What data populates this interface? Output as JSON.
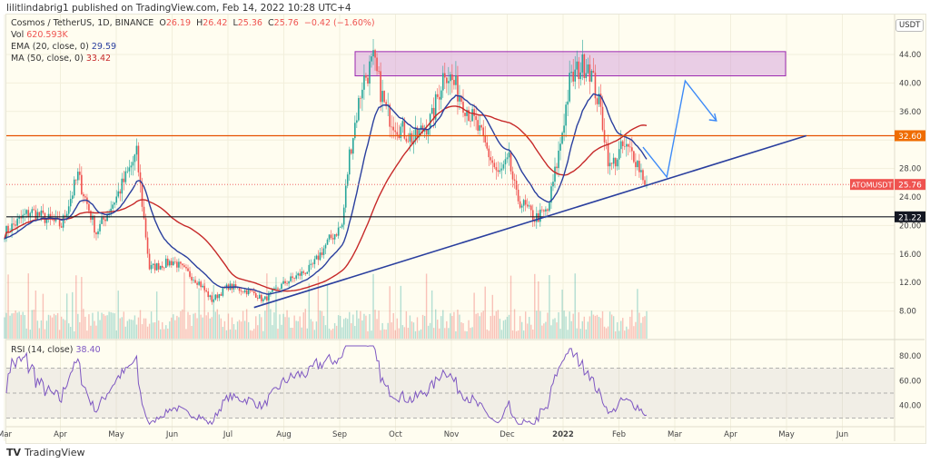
{
  "publisher_line": "lilitlindabrig1 published on TradingView.com, Feb 14, 2022 10:28 UTC+4",
  "legend": {
    "symbol": "Cosmos / TetherUS, 1D, BINANCE",
    "o_label": "O",
    "o": "26.19",
    "h_label": "H",
    "h": "26.42",
    "l_label": "L",
    "l": "25.36",
    "c_label": "C",
    "c": "25.76",
    "change": "−0.42 (−1.60%)",
    "vol_label": "Vol",
    "vol": "620.593K",
    "ema_label": "EMA (20, close, 0)",
    "ema": "29.59",
    "ma_label": "MA (50, close, 0)",
    "ma": "33.42",
    "rsi_label": "RSI (14, close)",
    "rsi": "38.40"
  },
  "currency": "USDT",
  "logo_text": "TradingView",
  "colors": {
    "up": "#26a69a",
    "down": "#ef5350",
    "ema": "#2a3f9e",
    "ma": "#c62828",
    "rsi": "#7e57c2",
    "resistance": "#e65100",
    "support": "#131722",
    "trendline": "#2a3f9e",
    "projection": "#3d8af7",
    "zone": "#9c27b0"
  },
  "chart_data": {
    "type": "candlestick",
    "price_axis": {
      "ticks": [
        "44.00",
        "40.00",
        "36.00",
        "28.00",
        "24.00",
        "20.00",
        "16.00",
        "12.00",
        "8.00"
      ],
      "range": [
        6,
        46
      ]
    },
    "rsi_axis": {
      "ticks": [
        "80.00",
        "60.00",
        "40.00"
      ],
      "bands": [
        70,
        50,
        30
      ]
    },
    "time_axis": [
      "Mar",
      "Apr",
      "May",
      "Jun",
      "Jul",
      "Aug",
      "Sep",
      "Oct",
      "Nov",
      "Dec",
      "2022",
      "Feb",
      "Mar",
      "Apr",
      "May",
      "Jun"
    ],
    "price_path": [
      [
        "2021-03-01",
        19
      ],
      [
        "2021-03-15",
        22
      ],
      [
        "2021-04-01",
        20
      ],
      [
        "2021-04-10",
        27
      ],
      [
        "2021-04-20",
        19
      ],
      [
        "2021-05-01",
        24
      ],
      [
        "2021-05-12",
        30
      ],
      [
        "2021-05-19",
        14
      ],
      [
        "2021-06-01",
        15
      ],
      [
        "2021-06-15",
        12
      ],
      [
        "2021-06-22",
        9.5
      ],
      [
        "2021-07-01",
        11.5
      ],
      [
        "2021-07-15",
        10.5
      ],
      [
        "2021-07-20",
        9.5
      ],
      [
        "2021-08-01",
        12
      ],
      [
        "2021-08-15",
        14
      ],
      [
        "2021-08-25",
        18
      ],
      [
        "2021-09-01",
        20
      ],
      [
        "2021-09-05",
        30
      ],
      [
        "2021-09-12",
        40
      ],
      [
        "2021-09-18",
        43
      ],
      [
        "2021-09-25",
        36
      ],
      [
        "2021-10-01",
        34
      ],
      [
        "2021-10-10",
        32
      ],
      [
        "2021-10-20",
        35
      ],
      [
        "2021-10-27",
        42
      ],
      [
        "2021-11-05",
        38
      ],
      [
        "2021-11-15",
        33
      ],
      [
        "2021-11-25",
        27
      ],
      [
        "2021-12-01",
        29
      ],
      [
        "2021-12-05",
        24
      ],
      [
        "2021-12-15",
        21
      ],
      [
        "2021-12-22",
        22
      ],
      [
        "2021-12-28",
        30
      ],
      [
        "2022-01-03",
        40
      ],
      [
        "2022-01-08",
        42
      ],
      [
        "2022-01-13",
        43
      ],
      [
        "2022-01-20",
        36
      ],
      [
        "2022-01-25",
        28
      ],
      [
        "2022-02-01",
        31
      ],
      [
        "2022-02-07",
        30
      ],
      [
        "2022-02-14",
        25.76
      ]
    ],
    "last_price": {
      "label": "ATOMUSDT",
      "value": "25.76"
    },
    "horizontal_lines": [
      {
        "value": "32.60"
      },
      {
        "value": "21.22"
      }
    ],
    "resistance_zone": [
      41,
      44.4
    ],
    "trendline": [
      [
        "2021-07-15",
        8.5
      ],
      [
        "2022-05-12",
        32.6
      ]
    ],
    "projection": [
      [
        "2022-02-12",
        31
      ],
      [
        "2022-02-25",
        26.8
      ],
      [
        "2022-03-07",
        40.3
      ],
      [
        "2022-03-24",
        34.7
      ]
    ]
  }
}
